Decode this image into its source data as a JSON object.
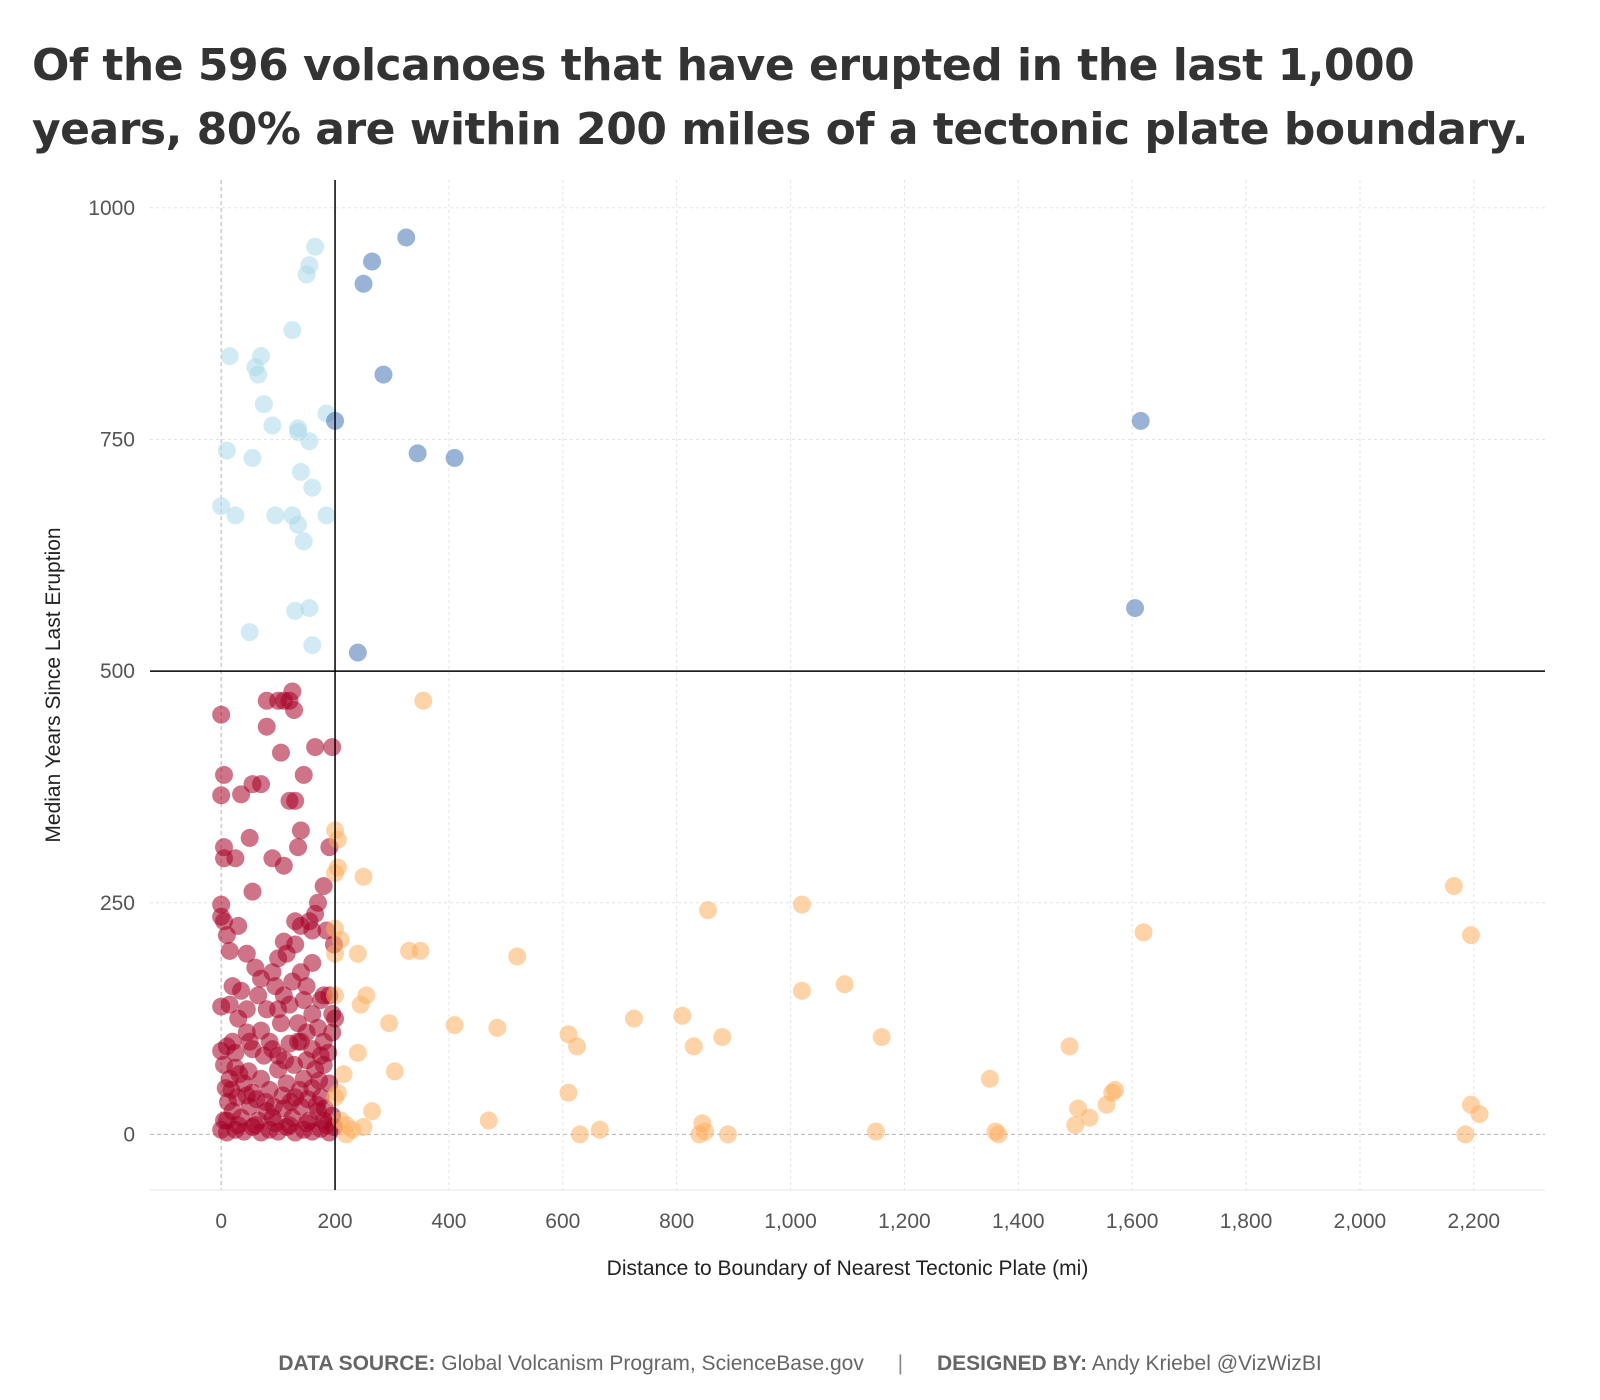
{
  "title": "Of the 596 volcanoes that have erupted in the last 1,000 years, 80% are within 200 miles of a tectonic plate boundary.",
  "footer": {
    "source_label": "DATA SOURCE:",
    "source_text": "Global Volcanism Program, ScienceBase.gov",
    "separator": "|",
    "designer_label": "DESIGNED BY:",
    "designer_text": "Andy Kriebel @VizWizBI"
  },
  "colors": {
    "near_recent": "#a50026",
    "far_recent": "#fdae61",
    "near_old": "#abd9e9",
    "far_old": "#4575b4",
    "reference_line": "#000000",
    "grid": "#e3e3e3"
  },
  "chart_data": {
    "type": "scatter",
    "title": "Of the 596 volcanoes that have erupted in the last 1,000 years, 80% are within 200 miles of a tectonic plate boundary.",
    "xlabel": "Distance to Boundary of Nearest Tectonic Plate (mi)",
    "ylabel": "Median Years Since Last Eruption",
    "xlim": [
      -125,
      2325
    ],
    "ylim": [
      -60,
      1030
    ],
    "x_ticks": [
      0,
      200,
      400,
      600,
      800,
      1000,
      1200,
      1400,
      1600,
      1800,
      2000,
      2200
    ],
    "x_tick_labels": [
      "0",
      "200",
      "400",
      "600",
      "800",
      "1,000",
      "1,200",
      "1,400",
      "1,600",
      "1,800",
      "2,000",
      "2,200"
    ],
    "y_ticks": [
      0,
      250,
      500,
      750,
      1000
    ],
    "y_tick_labels": [
      "0",
      "250",
      "500",
      "750",
      "1000"
    ],
    "reference_lines": {
      "x": 200,
      "y": 500
    },
    "grid": true,
    "legend": "none",
    "series": [
      {
        "color": "#a50026",
        "points": [
          [
            0,
            453
          ],
          [
            5,
            388
          ],
          [
            0,
            366
          ],
          [
            5,
            310
          ],
          [
            5,
            298
          ],
          [
            25,
            298
          ],
          [
            35,
            367
          ],
          [
            50,
            320
          ],
          [
            55,
            378
          ],
          [
            70,
            378
          ],
          [
            90,
            298
          ],
          [
            110,
            290
          ],
          [
            120,
            360
          ],
          [
            130,
            360
          ],
          [
            80,
            468
          ],
          [
            100,
            468
          ],
          [
            110,
            468
          ],
          [
            120,
            468
          ],
          [
            125,
            478
          ],
          [
            128,
            458
          ],
          [
            80,
            440
          ],
          [
            105,
            412
          ],
          [
            145,
            388
          ],
          [
            140,
            328
          ],
          [
            135,
            310
          ],
          [
            165,
            418
          ],
          [
            195,
            418
          ],
          [
            0,
            248
          ],
          [
            0,
            235
          ],
          [
            5,
            230
          ],
          [
            10,
            215
          ],
          [
            15,
            198
          ],
          [
            30,
            225
          ],
          [
            55,
            262
          ],
          [
            45,
            195
          ],
          [
            60,
            180
          ],
          [
            35,
            155
          ],
          [
            20,
            160
          ],
          [
            15,
            140
          ],
          [
            0,
            138
          ],
          [
            190,
            310
          ],
          [
            180,
            268
          ],
          [
            170,
            250
          ],
          [
            165,
            238
          ],
          [
            130,
            230
          ],
          [
            140,
            225
          ],
          [
            155,
            230
          ],
          [
            160,
            220
          ],
          [
            130,
            205
          ],
          [
            110,
            208
          ],
          [
            115,
            195
          ],
          [
            100,
            190
          ],
          [
            90,
            175
          ],
          [
            70,
            168
          ],
          [
            65,
            150
          ],
          [
            80,
            135
          ],
          [
            95,
            160
          ],
          [
            110,
            150
          ],
          [
            125,
            165
          ],
          [
            140,
            175
          ],
          [
            150,
            160
          ],
          [
            145,
            145
          ],
          [
            160,
            130
          ],
          [
            170,
            115
          ],
          [
            180,
            100
          ],
          [
            175,
            85
          ],
          [
            160,
            92
          ],
          [
            150,
            110
          ],
          [
            135,
            120
          ],
          [
            120,
            98
          ],
          [
            100,
            85
          ],
          [
            85,
            100
          ],
          [
            70,
            112
          ],
          [
            55,
            92
          ],
          [
            45,
            110
          ],
          [
            30,
            125
          ],
          [
            20,
            100
          ],
          [
            10,
            95
          ],
          [
            0,
            90
          ],
          [
            5,
            75
          ],
          [
            15,
            60
          ],
          [
            25,
            72
          ],
          [
            40,
            55
          ],
          [
            55,
            45
          ],
          [
            70,
            60
          ],
          [
            85,
            48
          ],
          [
            100,
            70
          ],
          [
            115,
            55
          ],
          [
            130,
            40
          ],
          [
            145,
            60
          ],
          [
            160,
            50
          ],
          [
            175,
            40
          ],
          [
            190,
            55
          ],
          [
            195,
            20
          ],
          [
            185,
            10
          ],
          [
            170,
            25
          ],
          [
            155,
            15
          ],
          [
            140,
            30
          ],
          [
            125,
            18
          ],
          [
            110,
            28
          ],
          [
            95,
            12
          ],
          [
            80,
            25
          ],
          [
            65,
            15
          ],
          [
            50,
            30
          ],
          [
            35,
            18
          ],
          [
            20,
            25
          ],
          [
            5,
            15
          ],
          [
            0,
            5
          ],
          [
            10,
            2
          ],
          [
            25,
            5
          ],
          [
            40,
            3
          ],
          [
            55,
            8
          ],
          [
            70,
            2
          ],
          [
            85,
            5
          ],
          [
            100,
            3
          ],
          [
            115,
            8
          ],
          [
            130,
            2
          ],
          [
            145,
            5
          ],
          [
            160,
            3
          ],
          [
            175,
            6
          ],
          [
            190,
            2
          ],
          [
            198,
            8
          ],
          [
            12,
            35
          ],
          [
            28,
            40
          ],
          [
            45,
            42
          ],
          [
            62,
            38
          ],
          [
            78,
            35
          ],
          [
            92,
            30
          ],
          [
            108,
            42
          ],
          [
            122,
            35
          ],
          [
            138,
            48
          ],
          [
            152,
            38
          ],
          [
            168,
            32
          ],
          [
            182,
            28
          ],
          [
            8,
            50
          ],
          [
            18,
            48
          ],
          [
            32,
            65
          ],
          [
            48,
            68
          ],
          [
            75,
            85
          ],
          [
            90,
            92
          ],
          [
            105,
            120
          ],
          [
            120,
            140
          ],
          [
            135,
            100
          ],
          [
            150,
            80
          ],
          [
            165,
            70
          ],
          [
            180,
            75
          ],
          [
            195,
            130
          ],
          [
            190,
            150
          ],
          [
            180,
            150
          ],
          [
            175,
            145
          ],
          [
            200,
            125
          ],
          [
            195,
            110
          ],
          [
            185,
            220
          ],
          [
            198,
            205
          ],
          [
            10,
            15
          ],
          [
            30,
            10
          ],
          [
            60,
            10
          ],
          [
            90,
            18
          ],
          [
            120,
            10
          ],
          [
            150,
            12
          ],
          [
            180,
            15
          ],
          [
            45,
            135
          ],
          [
            100,
            135
          ],
          [
            160,
            185
          ],
          [
            25,
            88
          ],
          [
            50,
            100
          ],
          [
            140,
            100
          ],
          [
            112,
            80
          ],
          [
            128,
            75
          ],
          [
            172,
            58
          ],
          [
            188,
            88
          ]
        ]
      },
      {
        "color": "#fdae61",
        "points": [
          [
            200,
            328
          ],
          [
            205,
            318
          ],
          [
            205,
            288
          ],
          [
            200,
            282
          ],
          [
            250,
            278
          ],
          [
            200,
            222
          ],
          [
            210,
            210
          ],
          [
            240,
            195
          ],
          [
            200,
            195
          ],
          [
            330,
            198
          ],
          [
            350,
            198
          ],
          [
            520,
            192
          ],
          [
            200,
            150
          ],
          [
            255,
            150
          ],
          [
            245,
            140
          ],
          [
            295,
            120
          ],
          [
            410,
            118
          ],
          [
            485,
            115
          ],
          [
            610,
            108
          ],
          [
            625,
            95
          ],
          [
            725,
            125
          ],
          [
            810,
            128
          ],
          [
            830,
            95
          ],
          [
            880,
            105
          ],
          [
            1020,
            155
          ],
          [
            1095,
            162
          ],
          [
            1160,
            105
          ],
          [
            1020,
            248
          ],
          [
            855,
            242
          ],
          [
            240,
            88
          ],
          [
            305,
            68
          ],
          [
            215,
            65
          ],
          [
            205,
            45
          ],
          [
            200,
            40
          ],
          [
            265,
            25
          ],
          [
            210,
            15
          ],
          [
            220,
            10
          ],
          [
            230,
            5
          ],
          [
            250,
            8
          ],
          [
            220,
            0
          ],
          [
            470,
            15
          ],
          [
            610,
            45
          ],
          [
            630,
            0
          ],
          [
            665,
            5
          ],
          [
            840,
            0
          ],
          [
            845,
            12
          ],
          [
            850,
            3
          ],
          [
            890,
            0
          ],
          [
            1150,
            3
          ],
          [
            1350,
            60
          ],
          [
            1360,
            3
          ],
          [
            1365,
            0
          ],
          [
            1490,
            95
          ],
          [
            1500,
            10
          ],
          [
            1505,
            28
          ],
          [
            1525,
            18
          ],
          [
            1555,
            32
          ],
          [
            1565,
            45
          ],
          [
            1570,
            48
          ],
          [
            1620,
            218
          ],
          [
            2165,
            268
          ],
          [
            2195,
            215
          ],
          [
            2195,
            32
          ],
          [
            2210,
            22
          ],
          [
            2185,
            0
          ],
          [
            355,
            468
          ]
        ]
      },
      {
        "color": "#abd9e9",
        "points": [
          [
            165,
            958
          ],
          [
            155,
            938
          ],
          [
            150,
            928
          ],
          [
            125,
            868
          ],
          [
            15,
            840
          ],
          [
            70,
            840
          ],
          [
            60,
            828
          ],
          [
            65,
            820
          ],
          [
            75,
            788
          ],
          [
            90,
            765
          ],
          [
            135,
            762
          ],
          [
            135,
            758
          ],
          [
            155,
            748
          ],
          [
            185,
            778
          ],
          [
            10,
            738
          ],
          [
            55,
            730
          ],
          [
            140,
            715
          ],
          [
            160,
            698
          ],
          [
            0,
            678
          ],
          [
            25,
            668
          ],
          [
            95,
            668
          ],
          [
            125,
            668
          ],
          [
            185,
            668
          ],
          [
            135,
            658
          ],
          [
            145,
            640
          ],
          [
            130,
            565
          ],
          [
            155,
            568
          ],
          [
            50,
            542
          ],
          [
            160,
            528
          ]
        ]
      },
      {
        "color": "#4575b4",
        "points": [
          [
            325,
            968
          ],
          [
            265,
            942
          ],
          [
            250,
            918
          ],
          [
            285,
            820
          ],
          [
            200,
            770
          ],
          [
            345,
            735
          ],
          [
            410,
            730
          ],
          [
            240,
            520
          ],
          [
            1615,
            770
          ],
          [
            1605,
            568
          ]
        ]
      }
    ]
  }
}
